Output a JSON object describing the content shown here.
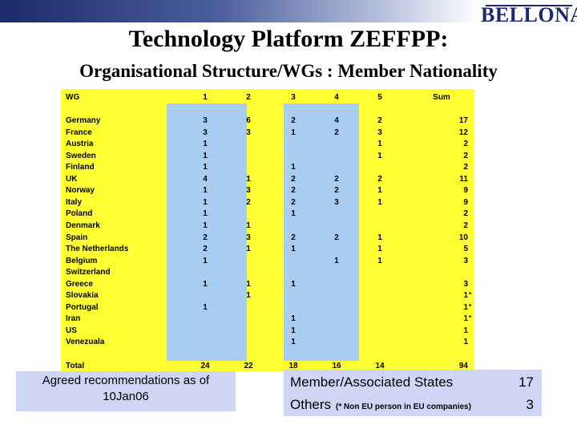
{
  "header": {
    "logo_text": "BELLONA",
    "title": "Technology Platform ZEFFPP:",
    "subtitle": "Organisational Structure/WGs : Member Nationality"
  },
  "table": {
    "columns": [
      "WG",
      "1",
      "2",
      "3",
      "4",
      "5",
      "Sum"
    ],
    "rows": [
      {
        "country": "Germany",
        "v": [
          "3",
          "6",
          "2",
          "4",
          "2"
        ],
        "sum": "17",
        "star": false
      },
      {
        "country": "France",
        "v": [
          "3",
          "3",
          "1",
          "2",
          "3"
        ],
        "sum": "12",
        "star": false
      },
      {
        "country": "Austria",
        "v": [
          "1",
          "",
          "",
          "",
          "1"
        ],
        "sum": "2",
        "star": false
      },
      {
        "country": "Sweden",
        "v": [
          "1",
          "",
          "",
          "",
          "1"
        ],
        "sum": "2",
        "star": false
      },
      {
        "country": "Finland",
        "v": [
          "1",
          "",
          "1",
          "",
          ""
        ],
        "sum": "2",
        "star": false
      },
      {
        "country": "UK",
        "v": [
          "4",
          "1",
          "2",
          "2",
          "2"
        ],
        "sum": "11",
        "star": false
      },
      {
        "country": "Norway",
        "v": [
          "1",
          "3",
          "2",
          "2",
          "1"
        ],
        "sum": "9",
        "star": false
      },
      {
        "country": "Italy",
        "v": [
          "1",
          "2",
          "2",
          "3",
          "1"
        ],
        "sum": "9",
        "star": false
      },
      {
        "country": "Poland",
        "v": [
          "1",
          "",
          "1",
          "",
          ""
        ],
        "sum": "2",
        "star": false
      },
      {
        "country": "Denmark",
        "v": [
          "1",
          "1",
          "",
          "",
          ""
        ],
        "sum": "2",
        "star": false
      },
      {
        "country": "Spain",
        "v": [
          "2",
          "3",
          "2",
          "2",
          "1"
        ],
        "sum": "10",
        "star": false
      },
      {
        "country": "The Netherlands",
        "v": [
          "2",
          "1",
          "1",
          "",
          "1"
        ],
        "sum": "5",
        "star": false
      },
      {
        "country": "Belgium",
        "v": [
          "1",
          "",
          "",
          "1",
          "1"
        ],
        "sum": "3",
        "star": false
      },
      {
        "country": "Switzerland",
        "v": [
          "",
          "",
          "",
          "",
          ""
        ],
        "sum": "",
        "star": false
      },
      {
        "country": "Greece",
        "v": [
          "1",
          "1",
          "1",
          "",
          ""
        ],
        "sum": "3",
        "star": false
      },
      {
        "country": "Slovakia",
        "v": [
          "",
          "1",
          "",
          "",
          ""
        ],
        "sum": "1",
        "star": true
      },
      {
        "country": "Portugal",
        "v": [
          "1",
          "",
          "",
          "",
          ""
        ],
        "sum": "1",
        "star": true
      },
      {
        "country": "Iran",
        "v": [
          "",
          "",
          "1",
          "",
          ""
        ],
        "sum": "1",
        "star": true
      },
      {
        "country": "US",
        "v": [
          "",
          "",
          "1",
          "",
          ""
        ],
        "sum": "1",
        "star": false
      },
      {
        "country": "Venezuala",
        "v": [
          "",
          "",
          "1",
          "",
          ""
        ],
        "sum": "1",
        "star": false
      }
    ],
    "total": {
      "label": "Total",
      "v": [
        "24",
        "22",
        "18",
        "16",
        "14"
      ],
      "sum": "94"
    },
    "star_symbol": "*"
  },
  "left_box": {
    "line1": "Agreed recommendations as of",
    "line2": "10Jan06"
  },
  "right_box": {
    "line1_label": "Member/Associated States",
    "line1_count": "17",
    "line2_label": "Others",
    "line2_note": "(* Non EU person in EU companies)",
    "line2_count": "3"
  },
  "colors": {
    "table_background": "#ffff33",
    "column_highlight": "#a8cdf0",
    "box_background": "#cfd6f5",
    "brand": "#1b2a6b"
  }
}
